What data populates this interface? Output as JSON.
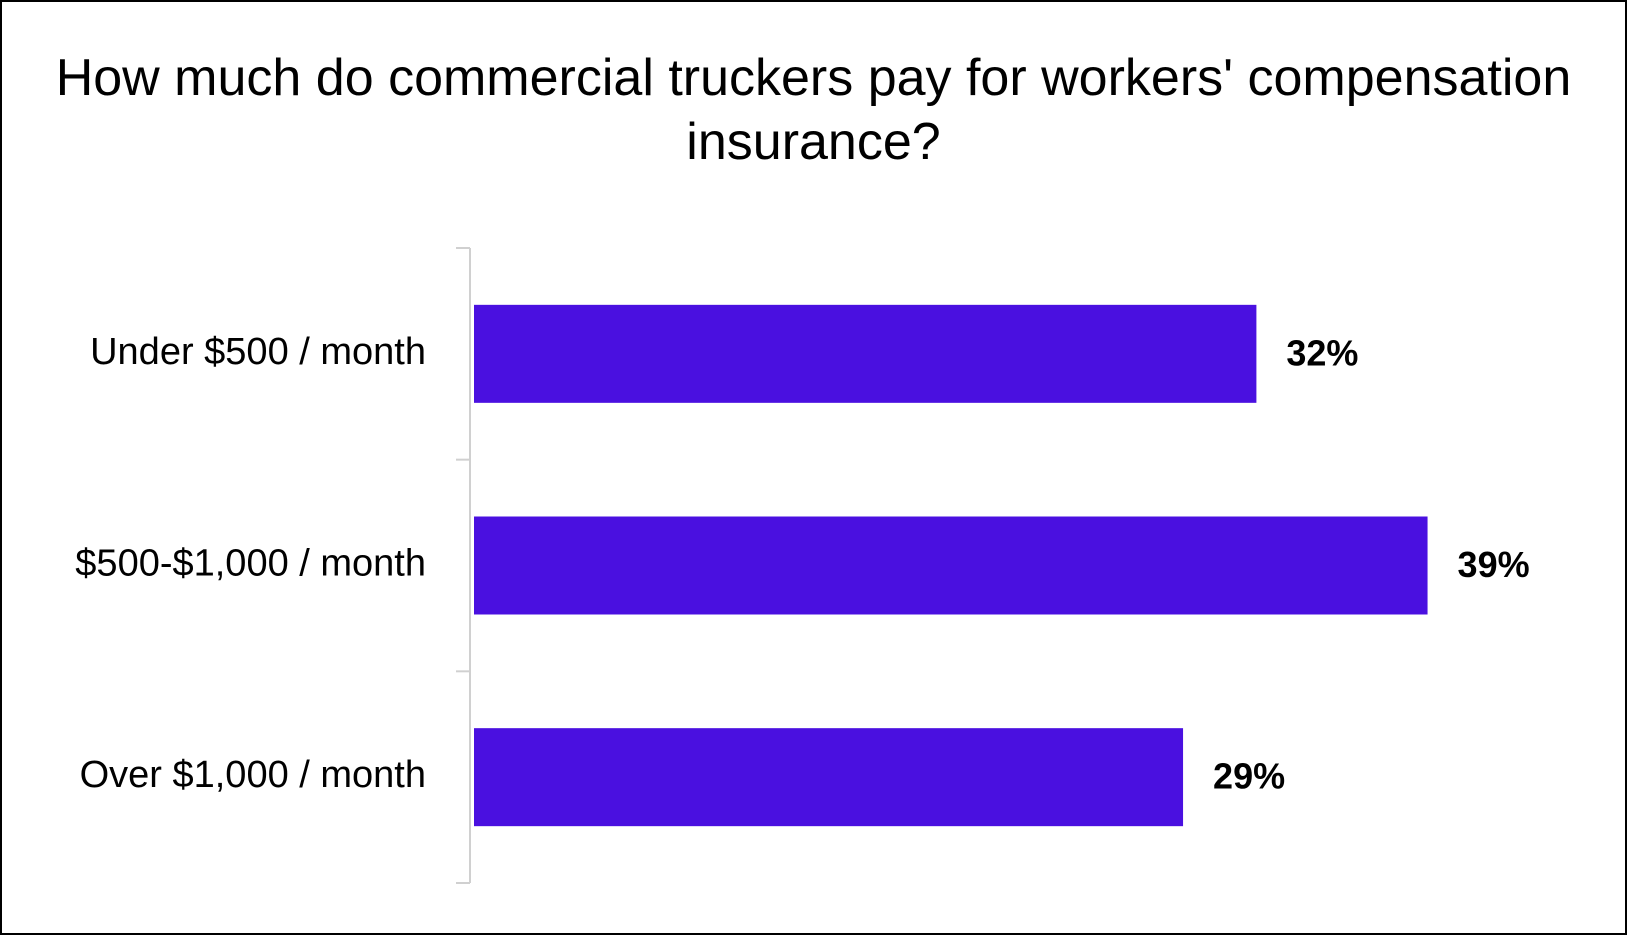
{
  "chart_data": {
    "type": "bar",
    "orientation": "horizontal",
    "title": "How much do commercial truckers pay for workers' compensation insurance?",
    "categories": [
      "Under $500 / month",
      "$500-$1,000 / month",
      "Over $1,000 / month"
    ],
    "values": [
      32,
      39,
      29
    ],
    "data_labels": [
      "32%",
      "39%",
      "29%"
    ],
    "unit": "%",
    "xlim": [
      0,
      40
    ],
    "grid": false,
    "legend": "none",
    "bar_color": "#4A10E0",
    "axis_color": "#D0D0D0"
  }
}
